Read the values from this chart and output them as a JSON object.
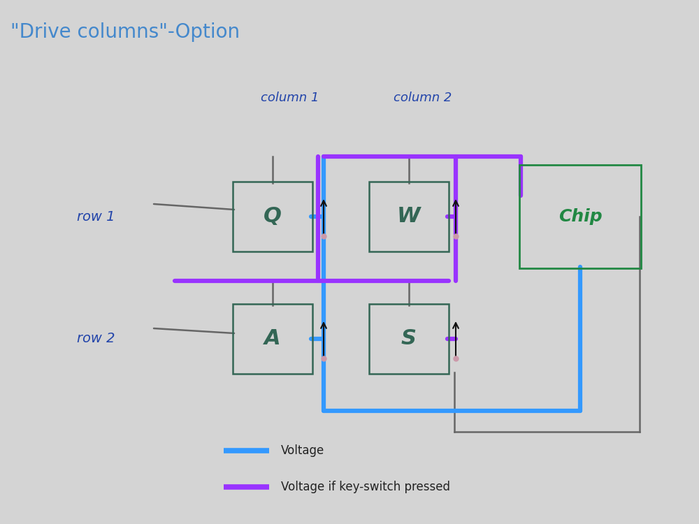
{
  "title": "\"Drive columns\"-Option",
  "title_color": "#4488cc",
  "title_fontsize": 20,
  "bg_color": "#d4d4d4",
  "voltage_color": "#3399ff",
  "voltage_pressed_color": "#9933ff",
  "wire_color": "#666666",
  "switch_color": "#336655",
  "chip_color": "#228844",
  "diode_arrow_color": "#111111",
  "diode_dot_color": "#cc99aa",
  "col1_label": "column 1",
  "col2_label": "column 2",
  "row1_label": "row 1",
  "row2_label": "row 2",
  "legend_voltage": "Voltage",
  "legend_pressed": "Voltage if key-switch pressed",
  "switch_labels": [
    "Q",
    "W",
    "A",
    "S"
  ],
  "chip_label": "Chip"
}
